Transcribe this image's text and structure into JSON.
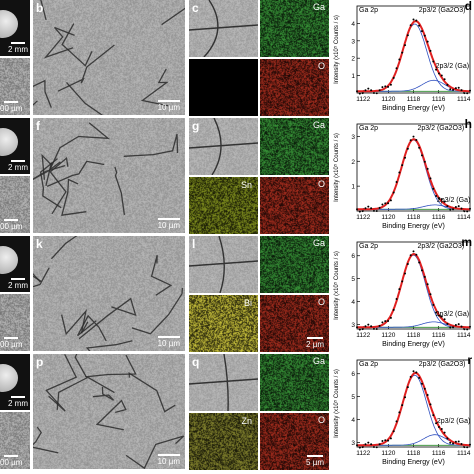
{
  "rows": [
    {
      "inset_scale": "2 mm",
      "inset_scale2": "00 µm",
      "sem_label": "b",
      "sem_scale": "10 µm",
      "map_label": "c",
      "maps": [
        "Ga",
        "",
        "O"
      ],
      "map_scale": "",
      "xps_label": "d",
      "xps_title": "Ga 2p",
      "peak1": "2p3/2 (Ga2O3)",
      "peak2": "2p3/2 (Ga)",
      "y_ticks": [
        "1",
        "2",
        "3",
        "4"
      ],
      "y_axis_text": "Intensity (x10⁵ Counts / s)",
      "x_ticks": [
        "1122",
        "1120",
        "1118",
        "1116",
        "1114"
      ],
      "x_axis_text": "Binding Energy (eV)"
    },
    {
      "inset_scale": "2 mm",
      "inset_scale2": "00 µm",
      "sem_label": "f",
      "sem_scale": "10 µm",
      "map_label": "g",
      "maps": [
        "Ga",
        "Sn",
        "O"
      ],
      "map_scale": "",
      "xps_label": "h",
      "xps_title": "Ga 2p",
      "peak1": "2p3/2 (Ga2O3)",
      "peak2": "2p3/2 (Ga)",
      "y_ticks": [
        "1",
        "2",
        "3"
      ],
      "y_axis_text": "Intensity (x10⁵ Counts / s)",
      "x_ticks": [
        "1122",
        "1120",
        "1118",
        "1116",
        "1114"
      ],
      "x_axis_text": "Binding Energy (eV)"
    },
    {
      "inset_scale": "2 mm",
      "inset_scale2": "00 µm",
      "sem_label": "k",
      "sem_scale": "10 µm",
      "map_label": "l",
      "maps": [
        "Ga",
        "Bi",
        "O"
      ],
      "map_scale": "2 µm",
      "xps_label": "m",
      "xps_title": "Ga 2p",
      "peak1": "2p3/2 (Ga2O3)",
      "peak2": "2p3/2 (Ga)",
      "y_ticks": [
        "3",
        "4",
        "5",
        "6"
      ],
      "y_axis_text": "Intensity (x10⁵ Counts / s)",
      "x_ticks": [
        "1122",
        "1120",
        "1118",
        "1116",
        "1114"
      ],
      "x_axis_text": "Binding Energy (eV)"
    },
    {
      "inset_scale": "2 mm",
      "inset_scale2": "00 µm",
      "sem_label": "p",
      "sem_scale": "10 µm",
      "map_label": "q",
      "maps": [
        "Ga",
        "Zn",
        "O"
      ],
      "map_scale": "5 µm",
      "xps_label": "r",
      "xps_title": "Ga 2p",
      "peak1": "2p3/2 (Ga2O3)",
      "peak2": "2p3/2 (Ga)",
      "y_ticks": [
        "3",
        "4",
        "5",
        "6"
      ],
      "y_axis_text": "Intensity (x10⁵ Counts / s)",
      "x_ticks": [
        "1122",
        "1120",
        "1118",
        "1116",
        "1114"
      ],
      "x_axis_text": "Binding Energy (eV)"
    }
  ],
  "colors": {
    "ga_map": "#3a9a3a",
    "o_map": "#b03020",
    "sn_map": "#8a9a20",
    "bi_map": "#d8d040",
    "zn_map": "#8a8a30",
    "fit_envelope": "#e02020",
    "component_main": "#3050c0",
    "component_small": "#3050c0",
    "baseline": "#2a8a2a"
  },
  "chart_data": [
    {
      "type": "line",
      "title": "Ga 2p",
      "xlabel": "Binding Energy (eV)",
      "ylabel": "Intensity (x10⁵ Counts / s)",
      "xlim": [
        1122.5,
        1113.5
      ],
      "ylim": [
        0,
        5
      ],
      "series": [
        {
          "name": "2p3/2 (Ga2O3)",
          "peak_x": 1117.9,
          "peak_y": 4.3
        },
        {
          "name": "2p3/2 (Ga)",
          "peak_x": 1116.4,
          "peak_y": 1.5
        }
      ]
    },
    {
      "type": "line",
      "title": "Ga 2p",
      "xlabel": "Binding Energy (eV)",
      "ylabel": "Intensity (x10⁵ Counts / s)",
      "xlim": [
        1122.5,
        1113.5
      ],
      "ylim": [
        0,
        3.5
      ],
      "series": [
        {
          "name": "2p3/2 (Ga2O3)",
          "peak_x": 1118.0,
          "peak_y": 3.1
        },
        {
          "name": "2p3/2 (Ga)",
          "peak_x": 1116.3,
          "peak_y": 0.4
        }
      ]
    },
    {
      "type": "line",
      "title": "Ga 2p",
      "xlabel": "Binding Energy (eV)",
      "ylabel": "Intensity (x10⁵ Counts / s)",
      "xlim": [
        1122.5,
        1113.5
      ],
      "ylim": [
        2.8,
        6.6
      ],
      "series": [
        {
          "name": "2p3/2 (Ga2O3)",
          "peak_x": 1118.0,
          "peak_y": 6.3
        },
        {
          "name": "2p3/2 (Ga)",
          "peak_x": 1116.4,
          "peak_y": 3.4
        }
      ]
    },
    {
      "type": "line",
      "title": "Ga 2p",
      "xlabel": "Binding Energy (eV)",
      "ylabel": "Intensity (x10⁵ Counts / s)",
      "xlim": [
        1122.5,
        1113.5
      ],
      "ylim": [
        2.8,
        6.6
      ],
      "series": [
        {
          "name": "2p3/2 (Ga2O3)",
          "peak_x": 1117.9,
          "peak_y": 6.2
        },
        {
          "name": "2p3/2 (Ga)",
          "peak_x": 1116.3,
          "peak_y": 3.9
        }
      ]
    }
  ]
}
